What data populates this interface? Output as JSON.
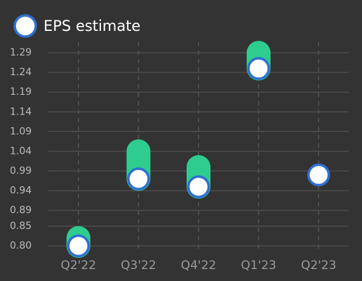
{
  "chart_data": {
    "type": "eps",
    "categories": [
      "Q2'22",
      "Q3'22",
      "Q4'22",
      "Q1'23",
      "Q2'23"
    ],
    "series": [
      {
        "name": "EPS estimate",
        "color": "#2f6fd0",
        "values": [
          0.8,
          0.97,
          0.95,
          1.25,
          0.98
        ]
      },
      {
        "color": "#2ecc8f",
        "values": [
          0.82,
          1.04,
          1.0,
          1.29,
          null
        ]
      }
    ],
    "ylim": [
      0.8,
      1.3
    ],
    "yticks": [
      {
        "value": 0.8,
        "label": "0.80"
      },
      0.85,
      0.89,
      0.94,
      0.99,
      1.04,
      1.09,
      1.14,
      1.19,
      1.24,
      1.29
    ],
    "grid": true
  }
}
